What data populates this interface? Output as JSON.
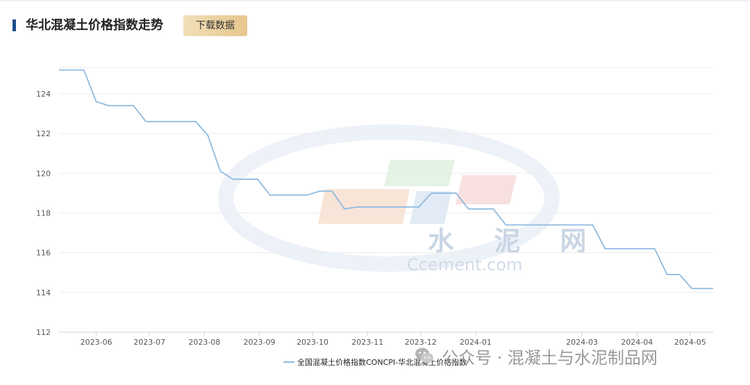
{
  "header": {
    "title": "华北混凝土价格指数走势",
    "download_label": "下载数据"
  },
  "watermark": {
    "cn_text": "水 泥 网",
    "en_text": "Ccement.com"
  },
  "wechat_overlay": {
    "text": "公众号 · 混凝土与水泥制品网",
    "icon": "wechat-icon"
  },
  "colors": {
    "line": "#8ebbe0",
    "accent_bar": "#1f4e8c",
    "button": "#e6c68d"
  },
  "chart_data": {
    "type": "line",
    "ylim": [
      112,
      125.5
    ],
    "yticks": [
      112,
      114,
      116,
      118,
      120,
      122,
      124
    ],
    "grid": true,
    "legend_position": "bottom",
    "x_tick_labels": [
      "2023-06",
      "2023-07",
      "2023-08",
      "2023-09",
      "2023-10",
      "2023-11",
      "2023-12",
      "2024-01",
      "2024-03",
      "2024-04",
      "2024-05"
    ],
    "x_tick_dates": [
      "2023-06-01",
      "2023-07-01",
      "2023-08-01",
      "2023-09-01",
      "2023-10-01",
      "2023-11-01",
      "2023-12-01",
      "2024-01-01",
      "2024-03-01",
      "2024-04-01",
      "2024-05-01"
    ],
    "x_range": [
      "2023-05-11",
      "2024-05-14"
    ],
    "series": [
      {
        "name": "全国混凝土价格指数CONCPI-华北混凝土价格指数",
        "x": [
          "2023-05-11",
          "2023-05-18",
          "2023-05-25",
          "2023-06-01",
          "2023-06-08",
          "2023-06-15",
          "2023-06-22",
          "2023-06-29",
          "2023-07-06",
          "2023-07-13",
          "2023-07-20",
          "2023-07-27",
          "2023-08-03",
          "2023-08-10",
          "2023-08-17",
          "2023-08-24",
          "2023-08-31",
          "2023-09-07",
          "2023-09-14",
          "2023-09-21",
          "2023-09-28",
          "2023-10-05",
          "2023-10-12",
          "2023-10-19",
          "2023-10-26",
          "2023-11-02",
          "2023-11-09",
          "2023-11-16",
          "2023-11-23",
          "2023-11-30",
          "2023-12-07",
          "2023-12-14",
          "2023-12-21",
          "2023-12-28",
          "2024-01-04",
          "2024-01-11",
          "2024-01-18",
          "2024-01-25",
          "2024-02-01",
          "2024-02-08",
          "2024-02-15",
          "2024-02-22",
          "2024-02-29",
          "2024-03-07",
          "2024-03-14",
          "2024-03-21",
          "2024-03-28",
          "2024-04-04",
          "2024-04-11",
          "2024-04-18",
          "2024-04-25",
          "2024-05-02",
          "2024-05-09",
          "2024-05-14"
        ],
        "values": [
          125.2,
          125.2,
          125.2,
          123.6,
          123.4,
          123.4,
          123.4,
          122.6,
          122.6,
          122.6,
          122.6,
          122.6,
          121.9,
          120.1,
          119.7,
          119.7,
          119.7,
          118.9,
          118.9,
          118.9,
          118.9,
          119.1,
          119.1,
          118.2,
          118.3,
          118.3,
          118.3,
          118.3,
          118.3,
          118.3,
          119.0,
          119.0,
          119.0,
          118.2,
          118.2,
          118.2,
          117.4,
          117.4,
          117.4,
          117.4,
          117.4,
          117.4,
          117.4,
          117.4,
          116.2,
          116.2,
          116.2,
          116.2,
          116.2,
          114.9,
          114.9,
          114.2,
          114.2,
          114.2
        ]
      }
    ]
  }
}
